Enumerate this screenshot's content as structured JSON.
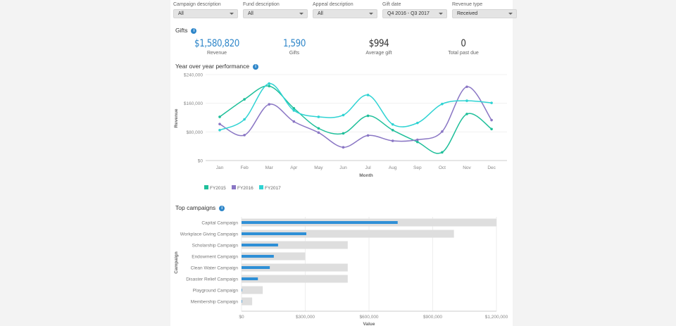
{
  "filters": [
    {
      "label": "Campaign description",
      "value": "All"
    },
    {
      "label": "Fund description",
      "value": "All"
    },
    {
      "label": "Appeal description",
      "value": "All"
    },
    {
      "label": "Gift date",
      "value": "Q4 2016 - Q3 2017"
    },
    {
      "label": "Revenue type",
      "value": "Received"
    }
  ],
  "gifts": {
    "title": "Gifts",
    "kpis": [
      {
        "value": "$1,580,820",
        "label": "Revenue",
        "color": "#2e86c9"
      },
      {
        "value": "1,590",
        "label": "Gifts",
        "color": "#2e86c9"
      },
      {
        "value": "$994",
        "label": "Average gift",
        "color": "#333333"
      },
      {
        "value": "0",
        "label": "Total past due",
        "color": "#333333"
      }
    ]
  },
  "yoy": {
    "title": "Year over year performance"
  },
  "campaigns": {
    "title": "Top campaigns"
  },
  "chart_data": [
    {
      "type": "line",
      "xlabel": "Month",
      "ylabel": "Revenue",
      "ylim": [
        0,
        240000
      ],
      "yticks": [
        "$0",
        "$80,000",
        "$160,000",
        "$240,000"
      ],
      "categories": [
        "Jan",
        "Feb",
        "Mar",
        "Apr",
        "May",
        "Jun",
        "Jul",
        "Aug",
        "Sep",
        "Oct",
        "Nov",
        "Dec"
      ],
      "legend": "bottom-left",
      "grid": true,
      "series": [
        {
          "name": "FY2015",
          "color": "#1fbf9a",
          "values": [
            122000,
            171000,
            208000,
            146000,
            90000,
            76000,
            125000,
            85000,
            52000,
            23000,
            130000,
            88000
          ]
        },
        {
          "name": "FY2016",
          "color": "#8a76c4",
          "values": [
            102000,
            71000,
            157000,
            109000,
            78000,
            37000,
            70000,
            55000,
            58000,
            81000,
            206000,
            113000
          ]
        },
        {
          "name": "FY2017",
          "color": "#2fd3d3",
          "values": [
            85000,
            115000,
            215000,
            140000,
            122000,
            127000,
            183000,
            101000,
            105000,
            158000,
            167000,
            161000
          ]
        }
      ]
    },
    {
      "type": "bar",
      "orientation": "horizontal",
      "xlabel": "Value",
      "ylabel": "Campaign",
      "xlim": [
        0,
        1200000
      ],
      "xticks": [
        "$0",
        "$300,000",
        "$600,000",
        "$900,000",
        "$1,200,000"
      ],
      "categories": [
        "Capital Campaign",
        "Workplace Giving Campaign",
        "Scholarship Campaign",
        "Endowment Campaign",
        "Clean Water Campaign",
        "Disaster Relief Campaign",
        "Playground Campaign",
        "Membership Campaign"
      ],
      "values": [
        735000,
        305000,
        172000,
        152000,
        133000,
        77000,
        2000,
        1000
      ],
      "targets": [
        1200000,
        1000000,
        500000,
        300000,
        500000,
        500000,
        100000,
        50000
      ],
      "value_color": "#2e8fd6",
      "target_color": "#dedede",
      "grid": true
    }
  ]
}
